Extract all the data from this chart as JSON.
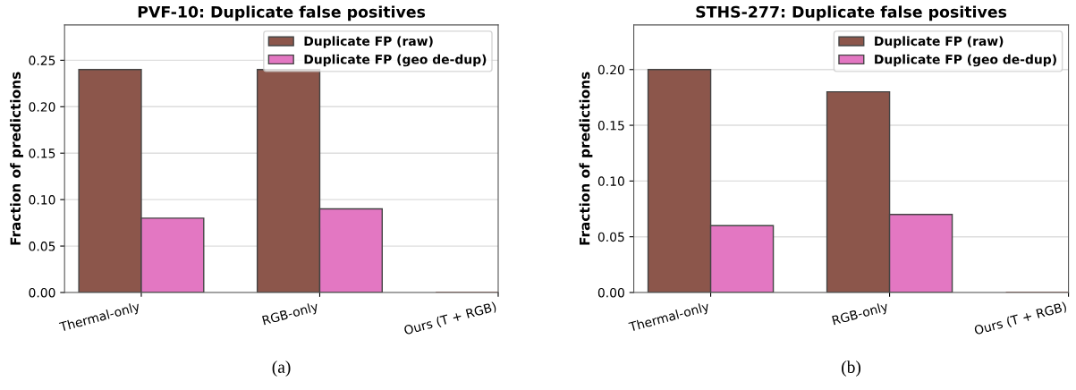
{
  "chart_data": [
    {
      "type": "bar",
      "title": "PVF-10: Duplicate false positives",
      "ylabel": "Fraction of predictions",
      "categories": [
        "Thermal-only",
        "RGB-only",
        "Ours (T + RGB)"
      ],
      "series": [
        {
          "name": "Duplicate FP (raw)",
          "color": "#8c564b",
          "values": [
            0.24,
            0.24,
            0
          ]
        },
        {
          "name": "Duplicate FP (geo de-dup)",
          "color": "#e377c2",
          "values": [
            0.08,
            0.09,
            0
          ]
        }
      ],
      "ylim": [
        0,
        0.288
      ],
      "yticks": [
        {
          "value": 0,
          "label": "0.00"
        },
        {
          "value": 0.05,
          "label": "0.05"
        },
        {
          "value": 0.1,
          "label": "0.10"
        },
        {
          "value": 0.15,
          "label": "0.15"
        },
        {
          "value": 0.2,
          "label": "0.20"
        },
        {
          "value": 0.25,
          "label": "0.25"
        }
      ],
      "grid": "y",
      "legend": "top right",
      "annotations": [
        "(a)"
      ]
    },
    {
      "type": "bar",
      "title": "STHS-277: Duplicate false positives",
      "ylabel": "Fraction of predictions",
      "categories": [
        "Thermal-only",
        "RGB-only",
        "Ours (T + RGB)"
      ],
      "series": [
        {
          "name": "Duplicate FP (raw)",
          "color": "#8c564b",
          "values": [
            0.2,
            0.18,
            0
          ]
        },
        {
          "name": "Duplicate FP (geo de-dup)",
          "color": "#e377c2",
          "values": [
            0.06,
            0.07,
            0
          ]
        }
      ],
      "ylim": [
        0,
        0.24
      ],
      "yticks": [
        {
          "value": 0,
          "label": "0.00"
        },
        {
          "value": 0.05,
          "label": "0.05"
        },
        {
          "value": 0.1,
          "label": "0.10"
        },
        {
          "value": 0.15,
          "label": "0.15"
        },
        {
          "value": 0.2,
          "label": "0.20"
        }
      ],
      "grid": "y",
      "legend": "top right",
      "annotations": [
        "(b)"
      ]
    }
  ]
}
